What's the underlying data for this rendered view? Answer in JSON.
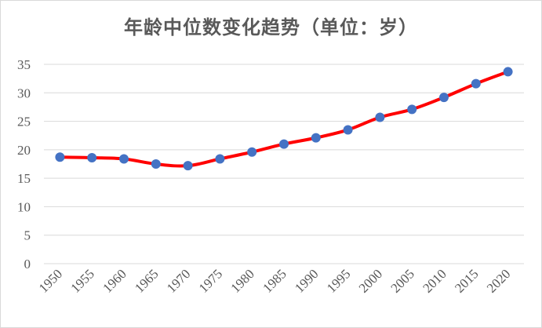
{
  "chart_data": {
    "type": "line",
    "title": "年龄中位数变化趋势（单位：岁）",
    "xlabel": "",
    "ylabel": "",
    "categories": [
      "1950",
      "1955",
      "1960",
      "1965",
      "1970",
      "1975",
      "1980",
      "1985",
      "1990",
      "1995",
      "2000",
      "2005",
      "2010",
      "2015",
      "2020"
    ],
    "series": [
      {
        "values": [
          18.7,
          18.6,
          18.4,
          17.5,
          17.2,
          18.4,
          19.6,
          21.0,
          22.1,
          23.5,
          25.7,
          27.1,
          29.2,
          31.6,
          33.7
        ]
      }
    ],
    "ylim": [
      0,
      35
    ],
    "yticks": [
      0,
      5,
      10,
      15,
      20,
      25,
      30,
      35
    ],
    "grid": true,
    "legend": "none",
    "colors": {
      "line": "#ff0000",
      "marker": "#4472c4",
      "grid": "#d9d9d9",
      "text": "#595959"
    }
  }
}
